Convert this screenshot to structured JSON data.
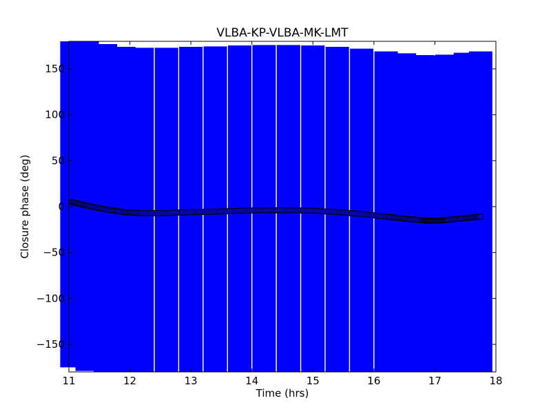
{
  "chart_data": {
    "type": "scatter",
    "title": "VLBA-KP-VLBA-MK-LMT",
    "xlabel": "Time (hrs)",
    "ylabel": "Closure phase (deg)",
    "xlim": [
      11,
      18
    ],
    "ylim": [
      -180,
      180
    ],
    "x_ticks": [
      11,
      12,
      13,
      14,
      15,
      16,
      17,
      18
    ],
    "y_ticks": [
      150,
      100,
      50,
      0,
      -50,
      -100,
      -150
    ],
    "x_tick_labels": [
      "11",
      "12",
      "13",
      "14",
      "15",
      "16",
      "17",
      "18"
    ],
    "y_tick_labels": [
      "150",
      "100",
      "50",
      "0",
      "−50",
      "−100",
      "−150"
    ],
    "grid": false,
    "legend": "none",
    "series": [
      {
        "marker": "circle",
        "color": "#0000ff",
        "edgecolor": "#000000",
        "x": [
          11.05,
          11.3,
          11.6,
          11.9,
          12.2,
          12.6,
          13.0,
          13.4,
          13.8,
          14.2,
          14.6,
          15.0,
          15.4,
          15.8,
          16.2,
          16.5,
          16.8,
          17.0,
          17.2,
          17.5,
          17.75
        ],
        "y": [
          5,
          1,
          -3,
          -6,
          -7,
          -7,
          -6,
          -5.5,
          -4.5,
          -4,
          -4,
          -4.5,
          -6,
          -8,
          -11,
          -13,
          -15,
          -15.5,
          -14.5,
          -12.5,
          -11
        ],
        "yerr": [
          180,
          180,
          180,
          180,
          180,
          180,
          180,
          180,
          180,
          180,
          180,
          180,
          180,
          180,
          180,
          180,
          180,
          180,
          180,
          180,
          180
        ]
      }
    ],
    "colors": {
      "errorbar": "#0000ff",
      "marker_face": "#0000ff",
      "marker_edge": "#000000",
      "axes": "#000000",
      "background": "#ffffff"
    }
  }
}
